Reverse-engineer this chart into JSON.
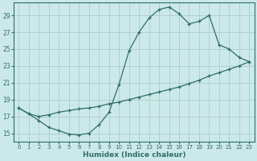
{
  "title": "",
  "xlabel": "Humidex (Indice chaleur)",
  "bg_color": "#cce9e9",
  "grid_color": "#b0d0d0",
  "line_color": "#2e6e68",
  "xlim": [
    -0.5,
    23.5
  ],
  "ylim": [
    14.0,
    30.5
  ],
  "xticks": [
    0,
    1,
    2,
    3,
    4,
    5,
    6,
    7,
    8,
    9,
    10,
    11,
    12,
    13,
    14,
    15,
    16,
    17,
    18,
    19,
    20,
    21,
    22,
    23
  ],
  "yticks": [
    15,
    17,
    19,
    21,
    23,
    25,
    27,
    29
  ],
  "curve1_x": [
    0,
    1,
    2,
    3,
    4,
    5,
    6,
    7,
    8,
    9,
    10,
    11,
    12,
    13,
    14,
    15,
    16,
    17,
    18,
    19,
    20,
    21,
    22,
    23
  ],
  "curve1_y": [
    18.0,
    17.3,
    16.5,
    15.7,
    15.3,
    14.9,
    14.8,
    15.0,
    16.0,
    17.5,
    20.8,
    24.8,
    27.0,
    28.7,
    29.7,
    30.0,
    29.2,
    28.0,
    28.3,
    29.0,
    25.5,
    25.0,
    24.0,
    23.5
  ],
  "curve2_x": [
    0,
    1,
    2,
    3,
    4,
    5,
    6,
    7,
    8,
    9,
    10,
    11,
    12,
    13,
    14,
    15,
    16,
    17,
    18,
    19,
    20,
    21,
    22,
    23
  ],
  "curve2_y": [
    18.0,
    17.3,
    17.0,
    17.2,
    17.5,
    17.7,
    17.9,
    18.0,
    18.2,
    18.5,
    18.7,
    19.0,
    19.3,
    19.6,
    19.9,
    20.2,
    20.5,
    20.9,
    21.3,
    21.8,
    22.2,
    22.6,
    23.0,
    23.5
  ]
}
